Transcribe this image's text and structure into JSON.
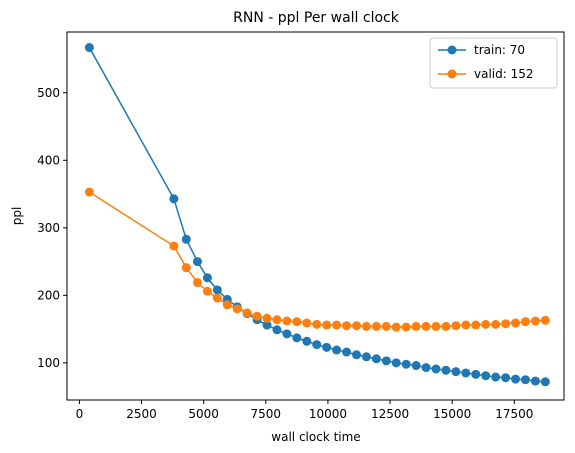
{
  "chart_data": {
    "type": "line",
    "title": "RNN - ppl Per wall clock",
    "xlabel": "wall clock time",
    "ylabel": "ppl",
    "xlim": [
      -500,
      19500
    ],
    "ylim": [
      45,
      590
    ],
    "xticks": [
      0,
      2500,
      5000,
      7500,
      10000,
      12500,
      15000,
      17500
    ],
    "yticks": [
      100,
      200,
      300,
      400,
      500
    ],
    "grid": false,
    "legend_position": "top-right",
    "series": [
      {
        "name": "train: 70",
        "color": "#1f77b4",
        "x": [
          400,
          3800,
          4300,
          4750,
          5150,
          5550,
          5950,
          6350,
          6750,
          7150,
          7550,
          7950,
          8350,
          8750,
          9150,
          9550,
          9950,
          10350,
          10750,
          11150,
          11550,
          11950,
          12350,
          12750,
          13150,
          13550,
          13950,
          14350,
          14750,
          15150,
          15550,
          15950,
          16350,
          16750,
          17150,
          17550,
          17950,
          18350,
          18750
        ],
        "y": [
          567,
          343,
          283,
          250,
          226,
          208,
          194,
          183,
          173,
          164,
          156,
          149,
          143,
          137,
          132,
          127,
          123,
          119,
          116,
          112,
          109,
          106,
          103,
          100,
          98,
          96,
          93,
          91,
          89,
          87,
          85,
          83,
          81,
          79,
          78,
          76,
          75,
          73,
          72
        ]
      },
      {
        "name": "valid: 152",
        "color": "#ff7f0e",
        "x": [
          400,
          3800,
          4300,
          4750,
          5150,
          5550,
          5950,
          6350,
          6750,
          7150,
          7550,
          7950,
          8350,
          8750,
          9150,
          9550,
          9950,
          10350,
          10750,
          11150,
          11550,
          11950,
          12350,
          12750,
          13150,
          13550,
          13950,
          14350,
          14750,
          15150,
          15550,
          15950,
          16350,
          16750,
          17150,
          17550,
          17950,
          18350,
          18750
        ],
        "y": [
          353,
          273,
          241,
          219,
          206,
          196,
          186,
          180,
          174,
          169,
          166,
          164,
          162,
          161,
          159,
          157,
          156,
          156,
          155,
          155,
          154,
          154,
          154,
          153,
          153,
          154,
          154,
          154,
          154,
          155,
          156,
          156,
          157,
          157,
          158,
          159,
          161,
          162,
          163
        ]
      }
    ]
  }
}
